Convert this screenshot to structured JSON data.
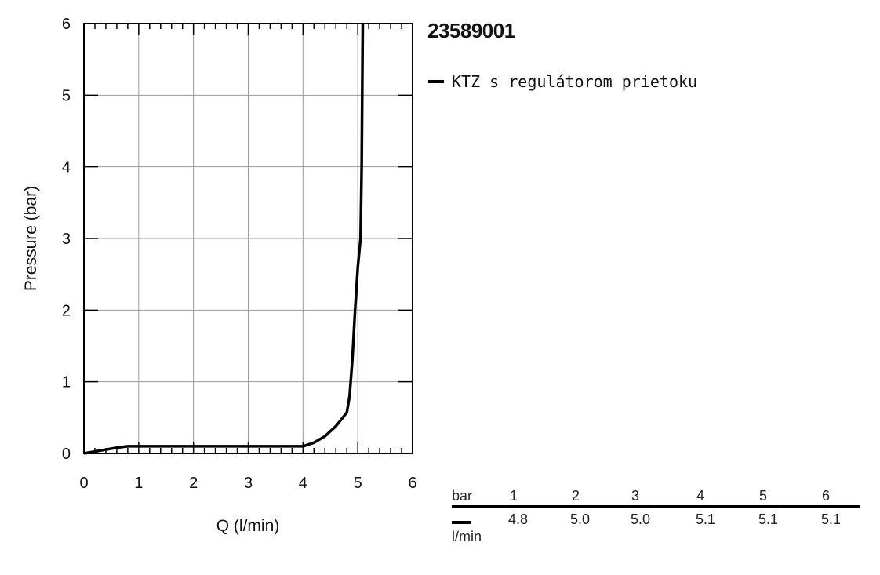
{
  "chart_data": {
    "type": "line",
    "title": "23589001",
    "xlabel": "Q (l/min)",
    "ylabel": "Pressure (bar)",
    "xlim": [
      0,
      6
    ],
    "ylim": [
      0,
      6
    ],
    "grid": true,
    "x_ticks": [
      "0",
      "1",
      "2",
      "3",
      "4",
      "5",
      "6"
    ],
    "y_ticks": [
      "0",
      "1",
      "2",
      "3",
      "4",
      "5",
      "6"
    ],
    "legend_position": "top-right, outside plot",
    "series": [
      {
        "name": "KTZ s regulátorom prietoku",
        "color": "#000000",
        "points": [
          [
            0,
            0
          ],
          [
            0.3,
            0.04
          ],
          [
            0.6,
            0.08
          ],
          [
            0.8,
            0.1
          ],
          [
            1.0,
            0.1
          ],
          [
            2.0,
            0.1
          ],
          [
            3.0,
            0.1
          ],
          [
            4.0,
            0.1
          ],
          [
            4.2,
            0.15
          ],
          [
            4.4,
            0.24
          ],
          [
            4.6,
            0.38
          ],
          [
            4.8,
            0.57
          ],
          [
            4.85,
            0.8
          ],
          [
            4.9,
            1.3
          ],
          [
            4.95,
            2.0
          ],
          [
            5.0,
            2.6
          ],
          [
            5.05,
            3.0
          ],
          [
            5.07,
            4.0
          ],
          [
            5.08,
            5.0
          ],
          [
            5.09,
            6.0
          ]
        ]
      }
    ]
  },
  "table": {
    "header_label": "bar",
    "unit_label": "l/min",
    "pressures": [
      "1",
      "2",
      "3",
      "4",
      "5",
      "6"
    ],
    "flows": [
      "4.8",
      "5.0",
      "5.0",
      "5.1",
      "5.1",
      "5.1"
    ]
  }
}
